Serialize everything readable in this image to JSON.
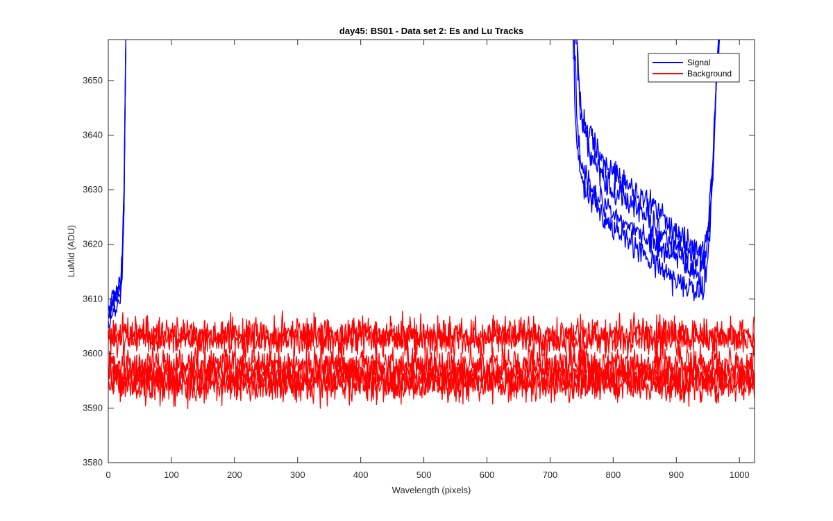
{
  "chart_data": {
    "type": "line",
    "title": "day45: BS01 - Data set 2: Es and Lu Tracks",
    "xlabel": "Wavelength (pixels)",
    "ylabel": "LuMid (ADU)",
    "xlim": [
      0,
      1024
    ],
    "ylim": [
      3580,
      3657.5
    ],
    "xticks": [
      "0",
      "100",
      "200",
      "300",
      "400",
      "500",
      "600",
      "700",
      "800",
      "900",
      "1000"
    ],
    "yticks": [
      "3580",
      "3590",
      "3600",
      "3610",
      "3620",
      "3630",
      "3640",
      "3650"
    ],
    "legend_position": "top-right",
    "legend": [
      "Signal",
      "Background"
    ],
    "series": [
      {
        "name": "Signal",
        "color": "#0000ff",
        "tracks": [
          {
            "left_x": [
              0,
              5,
              10,
              15,
              20,
              22,
              25,
              27,
              28
            ],
            "left_y": [
              3608,
              3610,
              3611,
              3612,
              3614,
              3618,
              3630,
              3650,
              3660
            ],
            "right_x": [
              740,
              745,
              750,
              760,
              780,
              800,
              820,
              840,
              860,
              880,
              900,
              920,
              935,
              945,
              952,
              958,
              962,
              966,
              970
            ],
            "right_y": [
              3660,
              3650,
              3645,
              3640,
              3636,
              3633,
              3631,
              3629,
              3627,
              3625,
              3622,
              3620,
              3619,
              3620,
              3625,
              3635,
              3645,
              3655,
              3660
            ]
          },
          {
            "left_x": [
              0,
              5,
              10,
              15,
              20,
              22,
              25,
              27,
              28
            ],
            "left_y": [
              3608,
              3609,
              3610,
              3611,
              3613,
              3617,
              3630,
              3650,
              3660
            ],
            "right_x": [
              742,
              746,
              752,
              762,
              780,
              800,
              820,
              840,
              860,
              880,
              900,
              920,
              935,
              945,
              952,
              958,
              962,
              966,
              970
            ],
            "right_y": [
              3660,
              3648,
              3641,
              3637,
              3633,
              3630,
              3628,
              3626,
              3624,
              3622,
              3620,
              3618,
              3617,
              3618,
              3624,
              3634,
              3645,
              3655,
              3660
            ]
          },
          {
            "left_x": [
              0,
              5,
              10,
              15,
              20,
              22,
              25,
              27,
              28
            ],
            "left_y": [
              3607,
              3608,
              3609,
              3610,
              3612,
              3616,
              3628,
              3650,
              3660
            ],
            "right_x": [
              738,
              742,
              748,
              760,
              780,
              800,
              820,
              840,
              860,
              880,
              900,
              920,
              935,
              945,
              952,
              958,
              962,
              966,
              970
            ],
            "right_y": [
              3660,
              3645,
              3636,
              3631,
              3628,
              3626,
              3624,
              3622,
              3621,
              3619,
              3618,
              3616,
              3615,
              3616,
              3622,
              3633,
              3645,
              3655,
              3660
            ]
          },
          {
            "left_x": [
              0,
              5,
              10,
              15,
              20,
              22,
              25,
              27,
              28
            ],
            "left_y": [
              3606,
              3607,
              3608,
              3609,
              3611,
              3615,
              3627,
              3650,
              3660
            ],
            "right_x": [
              736,
              740,
              746,
              758,
              780,
              800,
              820,
              840,
              860,
              880,
              900,
              920,
              935,
              945,
              952,
              958,
              962,
              966,
              970
            ],
            "right_y": [
              3660,
              3643,
              3634,
              3629,
              3626,
              3623,
              3621,
              3619,
              3617,
              3615,
              3613,
              3612,
              3611,
              3613,
              3620,
              3632,
              3645,
              3655,
              3660
            ]
          }
        ]
      },
      {
        "name": "Background",
        "color": "#ff0000",
        "tracks": [
          {
            "mean": 3603.5,
            "amplitude": 2.4
          },
          {
            "mean": 3602.8,
            "amplitude": 2.2
          },
          {
            "mean": 3598.0,
            "amplitude": 2.3
          },
          {
            "mean": 3596.5,
            "amplitude": 2.3
          },
          {
            "mean": 3595.0,
            "amplitude": 2.3
          },
          {
            "mean": 3594.2,
            "amplitude": 2.2
          }
        ]
      }
    ]
  }
}
